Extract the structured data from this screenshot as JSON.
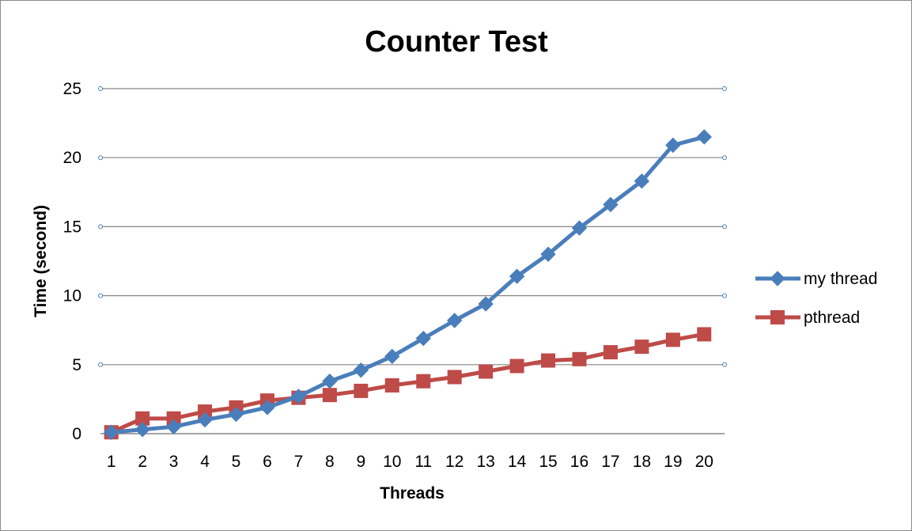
{
  "chart_data": {
    "type": "line",
    "title": "Counter Test",
    "xlabel": "Threads",
    "ylabel": "Time (second)",
    "categories": [
      "1",
      "2",
      "3",
      "4",
      "5",
      "6",
      "7",
      "8",
      "9",
      "10",
      "11",
      "12",
      "13",
      "14",
      "15",
      "16",
      "17",
      "18",
      "19",
      "20"
    ],
    "ylim": [
      0,
      25
    ],
    "yticks": [
      0,
      5,
      10,
      15,
      20,
      25
    ],
    "grid": true,
    "legend_position": "right",
    "series": [
      {
        "name": "my thread",
        "color": "#4a7ebb",
        "marker": "diamond",
        "values": [
          0.1,
          0.3,
          0.5,
          1.0,
          1.4,
          1.9,
          2.7,
          3.8,
          4.6,
          5.6,
          6.9,
          8.2,
          9.4,
          11.4,
          13.0,
          14.9,
          16.6,
          18.3,
          20.9,
          21.5
        ]
      },
      {
        "name": "pthread",
        "color": "#be4b48",
        "marker": "square",
        "values": [
          0.1,
          1.1,
          1.1,
          1.6,
          1.9,
          2.4,
          2.6,
          2.8,
          3.1,
          3.5,
          3.8,
          4.1,
          4.5,
          4.9,
          5.3,
          5.4,
          5.9,
          6.3,
          6.8,
          7.2
        ]
      }
    ]
  }
}
